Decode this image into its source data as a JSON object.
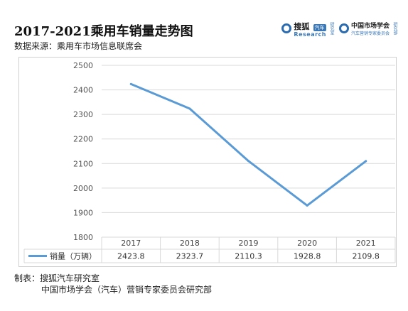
{
  "header": {
    "title": "2017-2021乘用车销量走势图",
    "source": "数据来源：乘用车市场信息联席会"
  },
  "brand": {
    "sohu_name": "搜狐",
    "sohu_tag": "汽车",
    "sohu_side": "研究室",
    "sohu_sub": "Research",
    "cma_name": "中国市场学会",
    "cma_sub": "汽车营销专家委员会",
    "cma_side": "研究部"
  },
  "chart_data": {
    "type": "line",
    "categories": [
      "2017",
      "2018",
      "2019",
      "2020",
      "2021"
    ],
    "series": [
      {
        "name": "销量（万辆）",
        "values": [
          2423.8,
          2323.7,
          2110.3,
          1928.8,
          2109.8
        ]
      }
    ],
    "value_labels": [
      "2423.8",
      "2323.7",
      "2110.3",
      "1928.8",
      "2109.8"
    ],
    "ylim": [
      1800,
      2500
    ],
    "yticks": [
      "1800",
      "1900",
      "2000",
      "2100",
      "2200",
      "2300",
      "2400",
      "2500"
    ],
    "grid": true,
    "legend": "data-table-left",
    "color": "#5b9bd5"
  },
  "footer": {
    "note_line1": "制表：搜狐汽车研究室",
    "note_line2": "中国市场学会（汽车）营销专家委员会研究部"
  }
}
